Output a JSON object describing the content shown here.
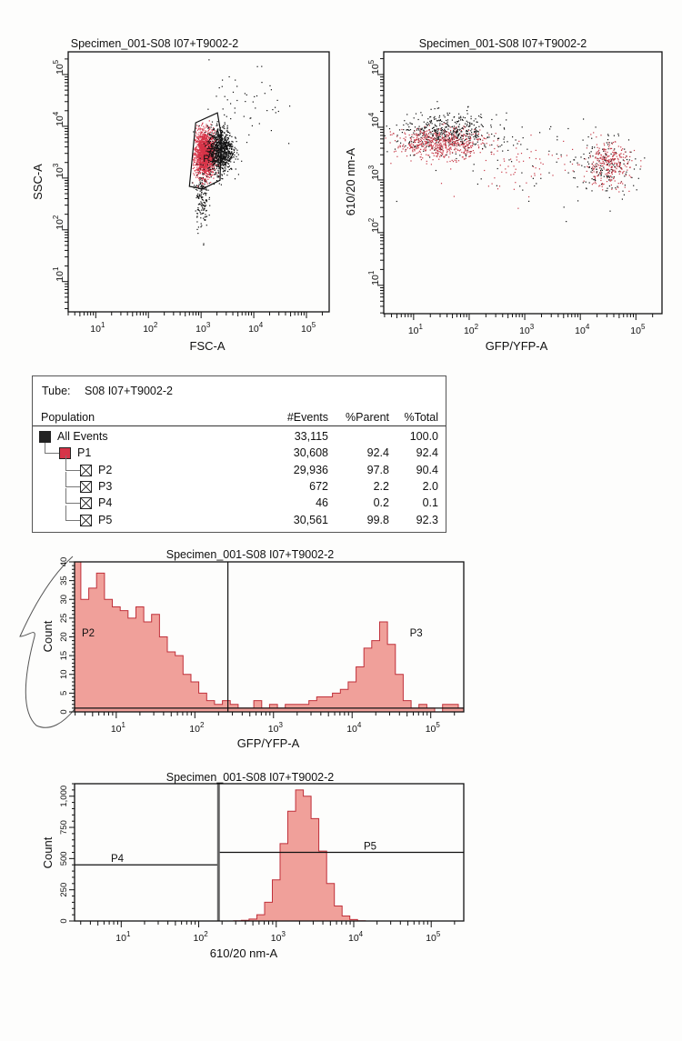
{
  "chart_data": [
    {
      "type": "scatter",
      "title": "Specimen_001-S08 I07+T9002-2",
      "xlabel": "FSC-A",
      "ylabel": "SSC-A",
      "xscale": "log",
      "yscale": "log",
      "xlim": [
        3,
        270000
      ],
      "ylim": [
        2.6,
        275000
      ],
      "xtick_exponents": [
        1,
        2,
        3,
        4,
        5
      ],
      "ytick_exponents": [
        1,
        2,
        3,
        4,
        5
      ],
      "gates": [
        {
          "name": "P1",
          "color": "#d63448",
          "polygon": [
            [
              790,
              11700
            ],
            [
              2040,
              18200
            ],
            [
              2400,
              6900
            ],
            [
              2290,
              910
            ],
            [
              1070,
              620
            ],
            [
              600,
              690
            ]
          ]
        }
      ],
      "populations": [
        {
          "color": "#d63448",
          "center": [
            1150,
            3000
          ],
          "spread_decades": [
            0.1,
            0.22
          ],
          "count": 1600,
          "gate": "P1"
        },
        {
          "color": "#111111",
          "center": [
            2300,
            3600
          ],
          "spread_decades": [
            0.12,
            0.22
          ],
          "count": 900
        },
        {
          "color": "#111111",
          "center": [
            1000,
            450
          ],
          "spread_decades": [
            0.06,
            0.3
          ],
          "count": 160
        },
        {
          "color": "#111111",
          "center": [
            7000,
            20000
          ],
          "spread_decades": [
            0.35,
            0.45
          ],
          "count": 50
        }
      ]
    },
    {
      "type": "scatter",
      "title": "Specimen_001-S08 I07+T9002-2",
      "xlabel": "GFP/YFP-A",
      "ylabel": "610/20 nm-A",
      "xscale": "log",
      "yscale": "log",
      "xlim": [
        2.9,
        295000
      ],
      "ylim": [
        2.9,
        270000
      ],
      "xtick_exponents": [
        1,
        2,
        3,
        4,
        5
      ],
      "ytick_exponents": [
        1,
        2,
        3,
        4,
        5
      ],
      "populations": [
        {
          "color": "#111111",
          "center": [
            40,
            8000
          ],
          "spread_decades": [
            0.45,
            0.18
          ],
          "count": 500
        },
        {
          "color": "#c83a48",
          "center": [
            30,
            5000
          ],
          "spread_decades": [
            0.4,
            0.14
          ],
          "count": 550
        },
        {
          "color": "#111111",
          "center": [
            30000,
            2000
          ],
          "spread_decades": [
            0.25,
            0.3
          ],
          "count": 150
        },
        {
          "color": "#c83a48",
          "center": [
            30000,
            2000
          ],
          "spread_decades": [
            0.2,
            0.2
          ],
          "count": 260
        },
        {
          "color": "#c83a48",
          "center": [
            1500,
            2000
          ],
          "spread_decades": [
            0.9,
            0.25
          ],
          "count": 90
        },
        {
          "color": "#111111",
          "center": [
            2000,
            2500
          ],
          "spread_decades": [
            1.1,
            0.45
          ],
          "count": 70
        }
      ]
    },
    {
      "type": "area",
      "title": "Specimen_001-S08 I07+T9002-2",
      "xlabel": "GFP/YFP-A",
      "ylabel": "Count",
      "xscale": "log",
      "yscale": "linear",
      "xlim": [
        2.95,
        263000
      ],
      "ylim": [
        0,
        40
      ],
      "xtick_exponents": [
        1,
        2,
        3,
        4,
        5
      ],
      "yticks": [
        "0",
        "5",
        "10",
        "15",
        "20",
        "25",
        "30",
        "35",
        "40"
      ],
      "fill": "#f0a09a",
      "line": "#c0303a",
      "bins_log10_start": 0.5,
      "bins_log10_step": 0.1,
      "counts": [
        40,
        30,
        33,
        37,
        30,
        28,
        27,
        25,
        28,
        24,
        26,
        20,
        16,
        15,
        10,
        8,
        5,
        3,
        2,
        3,
        2,
        1,
        1,
        3,
        1,
        2,
        1,
        2,
        2,
        2,
        3,
        4,
        4,
        5,
        6,
        8,
        12,
        17,
        19,
        24,
        18,
        10,
        3,
        1,
        2,
        1,
        0,
        2,
        2,
        1
      ],
      "gates": [
        {
          "name": "P2",
          "range": [
            2.95,
            263
          ],
          "level": 1
        },
        {
          "name": "P3",
          "range": [
            263,
            263000
          ],
          "level": 1
        }
      ]
    },
    {
      "type": "area",
      "title": "Specimen_001-S08 I07+T9002-2",
      "xlabel": "610/20 nm-A",
      "ylabel": "Count",
      "xscale": "log",
      "yscale": "linear",
      "xlim": [
        2.5,
        263000
      ],
      "ylim": [
        0,
        1100
      ],
      "xtick_exponents": [
        1,
        2,
        3,
        4,
        5
      ],
      "yticks": [
        "0",
        "250",
        "500",
        "750",
        "1,000"
      ],
      "fill": "#f0a09a",
      "line": "#c0303a",
      "bins_log10_start": 2.5,
      "bins_log10_step": 0.1,
      "counts": [
        2,
        5,
        15,
        50,
        150,
        330,
        620,
        880,
        1050,
        1000,
        820,
        560,
        300,
        120,
        40,
        12,
        2
      ],
      "gates": [
        {
          "name": "P4",
          "range": [
            2.5,
            180
          ],
          "level": 450
        },
        {
          "name": "P5",
          "range": [
            180,
            263000
          ],
          "level": 550
        }
      ]
    }
  ],
  "stats": {
    "tube_label": "Tube:",
    "tube_name": "S08 I07+T9002-2",
    "headers": {
      "population": "Population",
      "events": "#Events",
      "parent": "%Parent",
      "total": "%Total"
    },
    "rows": [
      {
        "name": "All Events",
        "events": "33,115",
        "parent": "",
        "total": "100.0",
        "color": "#222222",
        "level": 0
      },
      {
        "name": "P1",
        "events": "30,608",
        "parent": "92.4",
        "total": "92.4",
        "color": "#d63448",
        "level": 1
      },
      {
        "name": "P2",
        "events": "29,936",
        "parent": "97.8",
        "total": "90.4",
        "level": 2
      },
      {
        "name": "P3",
        "events": "672",
        "parent": "2.2",
        "total": "2.0",
        "level": 2
      },
      {
        "name": "P4",
        "events": "46",
        "parent": "0.2",
        "total": "0.1",
        "level": 2
      },
      {
        "name": "P5",
        "events": "30,561",
        "parent": "99.8",
        "total": "92.3",
        "level": 2
      }
    ]
  }
}
